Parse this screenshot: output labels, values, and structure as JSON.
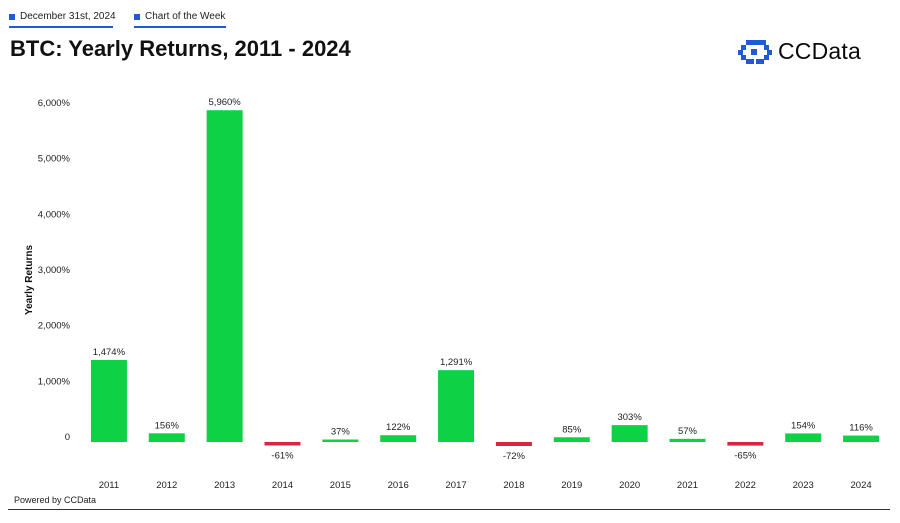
{
  "header": {
    "date": "December 31st, 2024",
    "section": "Chart of the Week",
    "title": "BTC: Yearly Returns, 2011 - 2024",
    "brand": "CCData"
  },
  "footer": {
    "powered_by": "Powered by CCData"
  },
  "colors": {
    "positive": "#0ed145",
    "negative": "#d7263d",
    "accent": "#1f5bd6"
  },
  "icons": [
    "ccdata-logo-icon"
  ],
  "chart_data": {
    "type": "bar",
    "title": "BTC: Yearly Returns, 2011 - 2024",
    "xlabel": "",
    "ylabel": "Yearly Returns",
    "ylim": [
      0,
      6000
    ],
    "yticks": [
      0,
      1000,
      2000,
      3000,
      4000,
      5000,
      6000
    ],
    "ytick_labels": [
      "0",
      "1,000%",
      "2,000%",
      "3,000%",
      "4,000%",
      "5,000%",
      "6,000%"
    ],
    "grid": false,
    "categories": [
      "2011",
      "2012",
      "2013",
      "2014",
      "2015",
      "2016",
      "2017",
      "2018",
      "2019",
      "2020",
      "2021",
      "2022",
      "2023",
      "2024"
    ],
    "values": [
      1474,
      156,
      5960,
      -61,
      37,
      122,
      1291,
      -72,
      85,
      303,
      57,
      -65,
      154,
      116
    ],
    "data_labels": [
      "1,474%",
      "156%",
      "5,960%",
      "-61%",
      "37%",
      "122%",
      "1,291%",
      "-72%",
      "85%",
      "303%",
      "57%",
      "-65%",
      "154%",
      "116%"
    ]
  }
}
